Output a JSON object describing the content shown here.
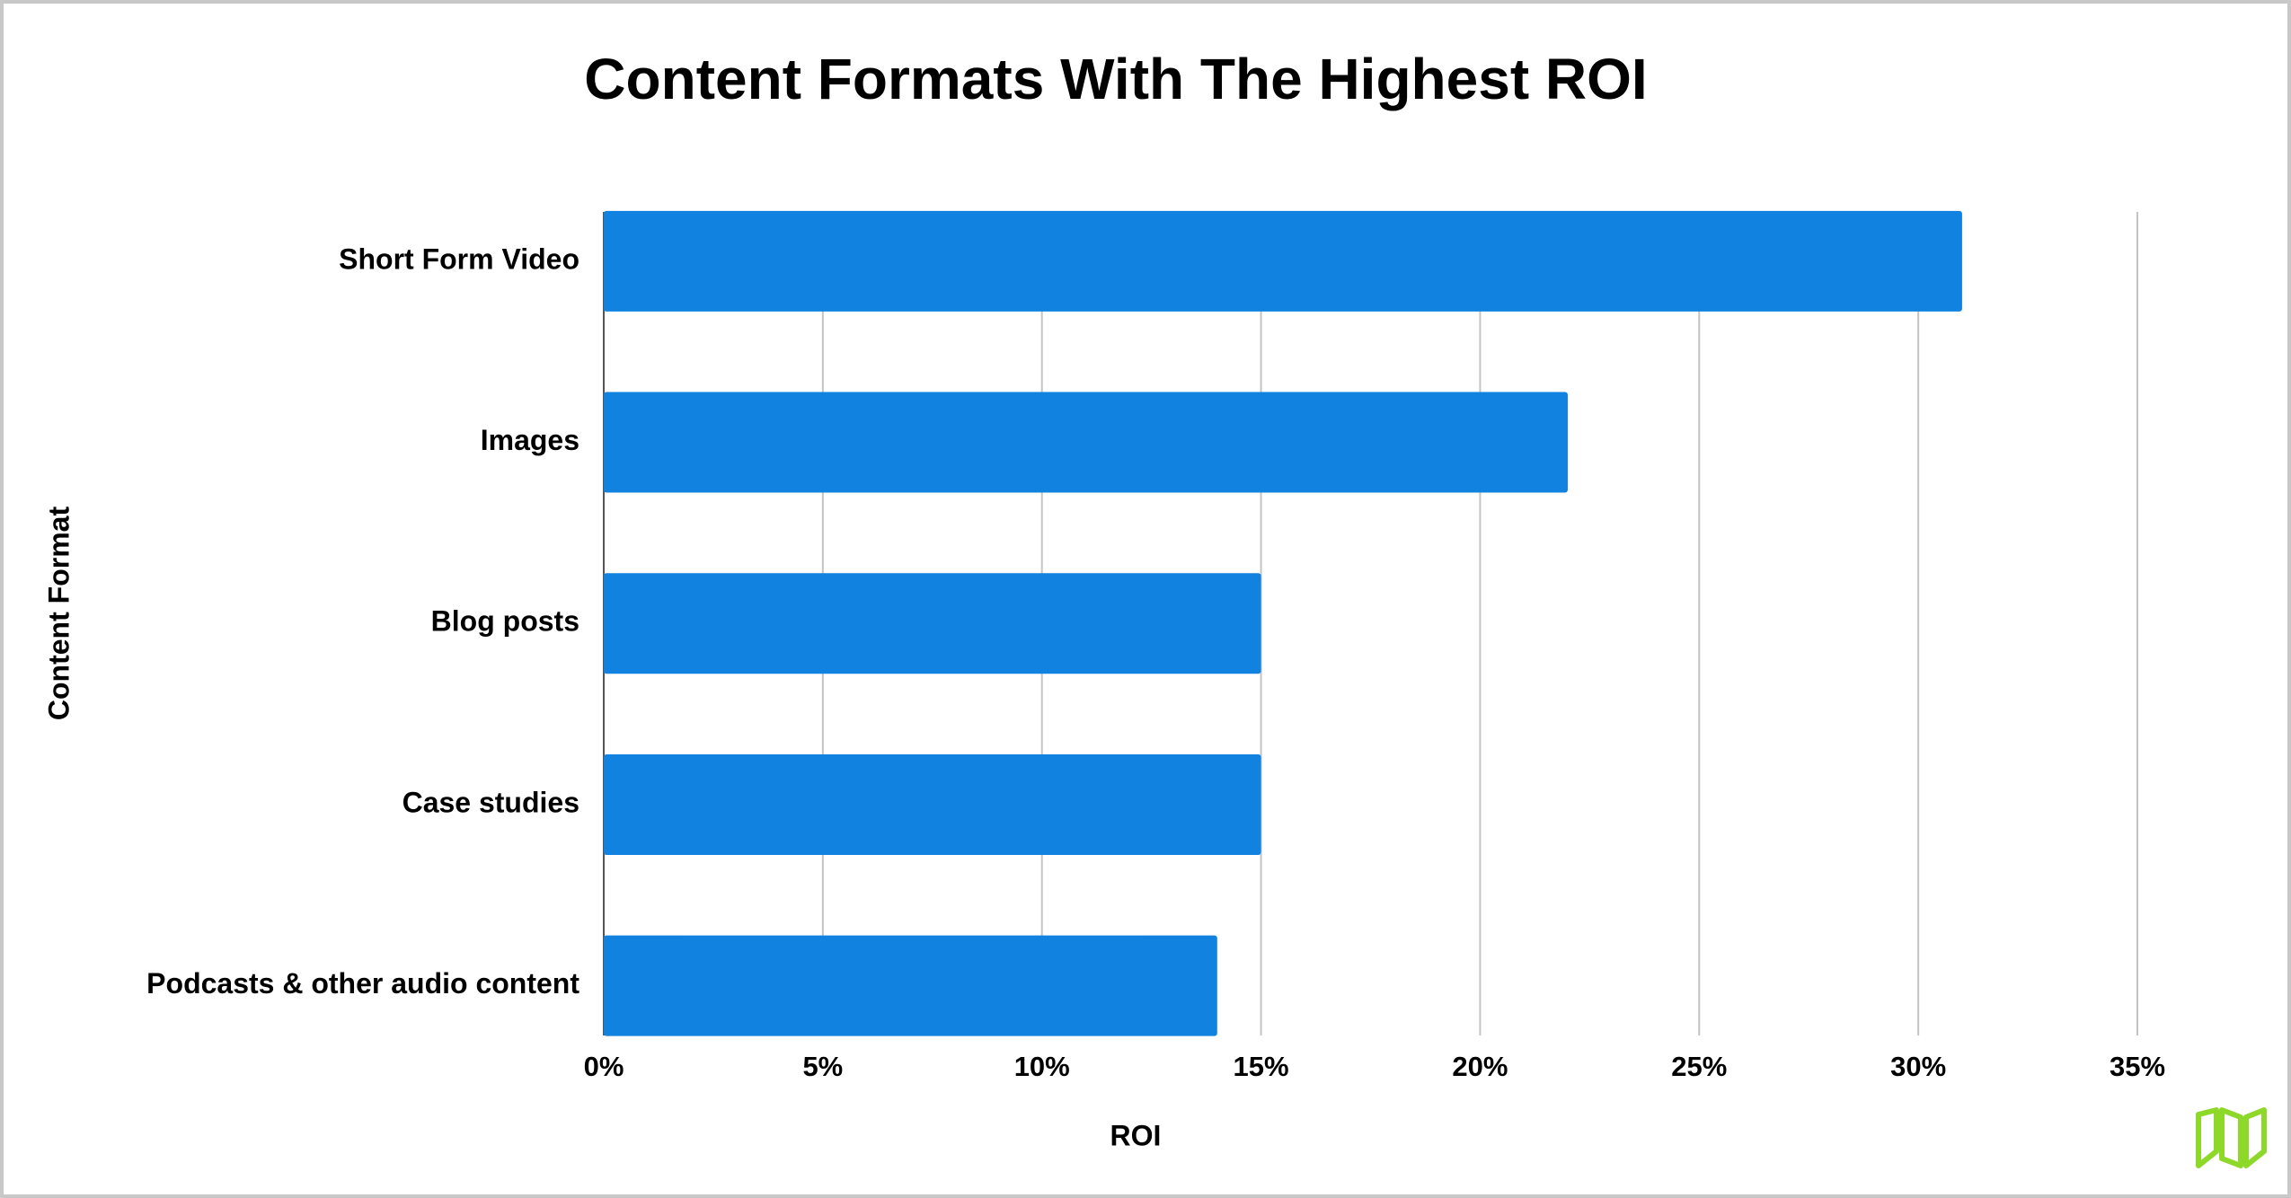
{
  "chart_data": {
    "type": "bar",
    "orientation": "horizontal",
    "title": "Content Formats With The Highest ROI",
    "x_label": "ROI",
    "y_label": "Content Format",
    "categories": [
      "Short Form Video",
      "Images",
      "Blog posts",
      "Case studies",
      "Podcasts & other audio content"
    ],
    "values": [
      31,
      22,
      15,
      15,
      14
    ],
    "color": "#1282e0",
    "xlim": [
      0,
      35
    ],
    "xticks": [
      {
        "value": 0,
        "label": "0%"
      },
      {
        "value": 5,
        "label": "5%"
      },
      {
        "value": 10,
        "label": "10%"
      },
      {
        "value": 15,
        "label": "15%"
      },
      {
        "value": 20,
        "label": "20%"
      },
      {
        "value": 25,
        "label": "25%"
      },
      {
        "value": 30,
        "label": "30%"
      },
      {
        "value": 35,
        "label": "35%"
      }
    ],
    "grid": true
  }
}
